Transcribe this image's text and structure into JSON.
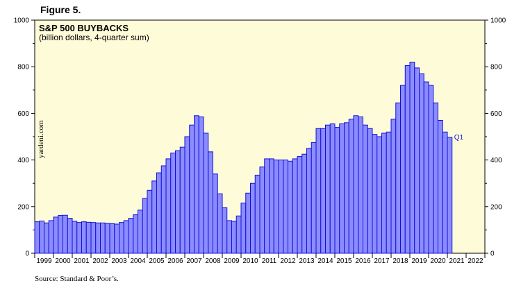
{
  "figure_label": "Figure 5.",
  "source": "Source: Standard & Poor’s.",
  "watermark": "yardeni.com",
  "colors": {
    "background": "#fefbd8",
    "bar_fill": "#8c8cff",
    "bar_stroke": "#1010d8",
    "annotation": "#1010d8"
  },
  "chart_data": {
    "type": "bar",
    "title": "S&P 500 BUYBACKS",
    "subtitle": "(billion dollars, 4-quarter sum)",
    "ylim": [
      0,
      1000
    ],
    "yticks": [
      0,
      200,
      400,
      600,
      800,
      1000
    ],
    "x_start_year": 1999,
    "x_end_year": 2022,
    "year_labels": [
      "1999",
      "2000",
      "2001",
      "2002",
      "2003",
      "2004",
      "2005",
      "2006",
      "2007",
      "2008",
      "2009",
      "2010",
      "2011",
      "2012",
      "2013",
      "2014",
      "2015",
      "2016",
      "2017",
      "2018",
      "2019",
      "2020",
      "2021",
      "2022"
    ],
    "grid": false,
    "legend": "none",
    "last_point_label": "Q1",
    "quarters": [
      "1999Q1",
      "1999Q2",
      "1999Q3",
      "1999Q4",
      "2000Q1",
      "2000Q2",
      "2000Q3",
      "2000Q4",
      "2001Q1",
      "2001Q2",
      "2001Q3",
      "2001Q4",
      "2002Q1",
      "2002Q2",
      "2002Q3",
      "2002Q4",
      "2003Q1",
      "2003Q2",
      "2003Q3",
      "2003Q4",
      "2004Q1",
      "2004Q2",
      "2004Q3",
      "2004Q4",
      "2005Q1",
      "2005Q2",
      "2005Q3",
      "2005Q4",
      "2006Q1",
      "2006Q2",
      "2006Q3",
      "2006Q4",
      "2007Q1",
      "2007Q2",
      "2007Q3",
      "2007Q4",
      "2008Q1",
      "2008Q2",
      "2008Q3",
      "2008Q4",
      "2009Q1",
      "2009Q2",
      "2009Q3",
      "2009Q4",
      "2010Q1",
      "2010Q2",
      "2010Q3",
      "2010Q4",
      "2011Q1",
      "2011Q2",
      "2011Q3",
      "2011Q4",
      "2012Q1",
      "2012Q2",
      "2012Q3",
      "2012Q4",
      "2013Q1",
      "2013Q2",
      "2013Q3",
      "2013Q4",
      "2014Q1",
      "2014Q2",
      "2014Q3",
      "2014Q4",
      "2015Q1",
      "2015Q2",
      "2015Q3",
      "2015Q4",
      "2016Q1",
      "2016Q2",
      "2016Q3",
      "2016Q4",
      "2017Q1",
      "2017Q2",
      "2017Q3",
      "2017Q4",
      "2018Q1",
      "2018Q2",
      "2018Q3",
      "2018Q4",
      "2019Q1",
      "2019Q2",
      "2019Q3",
      "2019Q4",
      "2020Q1",
      "2020Q2",
      "2020Q3",
      "2020Q4",
      "2021Q1"
    ],
    "values": [
      135,
      138,
      130,
      140,
      155,
      162,
      163,
      150,
      137,
      132,
      135,
      133,
      132,
      130,
      130,
      128,
      127,
      125,
      132,
      140,
      150,
      165,
      185,
      235,
      270,
      310,
      345,
      375,
      405,
      430,
      440,
      455,
      500,
      550,
      590,
      585,
      515,
      435,
      340,
      255,
      195,
      140,
      137,
      160,
      215,
      258,
      300,
      335,
      370,
      405,
      405,
      400,
      400,
      400,
      395,
      405,
      415,
      425,
      450,
      475,
      535,
      535,
      550,
      555,
      540,
      555,
      560,
      575,
      590,
      585,
      550,
      535,
      510,
      500,
      515,
      520,
      575,
      645,
      720,
      805,
      820,
      795,
      770,
      735,
      720,
      645,
      570,
      520,
      497
    ]
  }
}
